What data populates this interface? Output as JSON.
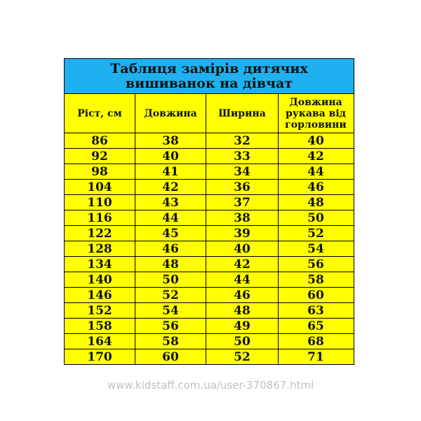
{
  "table": {
    "title_line1": "Таблиця замірів дитячих",
    "title_line2": "вишиванок на дівчат",
    "headers": [
      "Ріст, см",
      "Довжина",
      "Ширина",
      "Довжина рукава від горловини"
    ],
    "rows": [
      [
        "86",
        "38",
        "32",
        "40"
      ],
      [
        "92",
        "40",
        "33",
        "42"
      ],
      [
        "98",
        "41",
        "34",
        "44"
      ],
      [
        "104",
        "42",
        "36",
        "46"
      ],
      [
        "110",
        "43",
        "37",
        "48"
      ],
      [
        "116",
        "44",
        "38",
        "50"
      ],
      [
        "122",
        "45",
        "39",
        "52"
      ],
      [
        "128",
        "46",
        "40",
        "54"
      ],
      [
        "134",
        "48",
        "42",
        "56"
      ],
      [
        "140",
        "50",
        "44",
        "58"
      ],
      [
        "146",
        "52",
        "46",
        "60"
      ],
      [
        "152",
        "54",
        "48",
        "63"
      ],
      [
        "158",
        "56",
        "49",
        "65"
      ],
      [
        "164",
        "58",
        "50",
        "68"
      ],
      [
        "170",
        "60",
        "52",
        "71"
      ]
    ]
  },
  "watermark": "www.kidstaff.com.ua/user-370867.html",
  "colors": {
    "title_bg": "#1fb0ef",
    "cell_bg": "#ffff00",
    "text": "#111111"
  }
}
